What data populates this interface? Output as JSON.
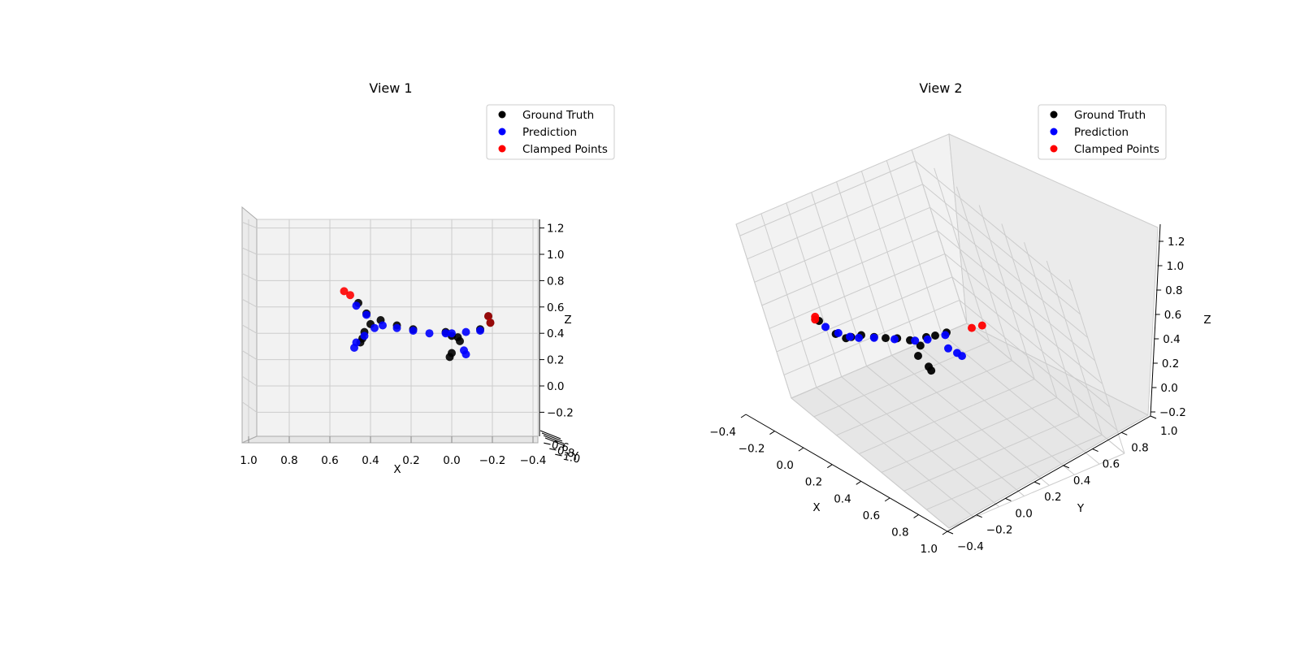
{
  "charts": [
    {
      "title": "View 1",
      "legend": [
        "Ground Truth",
        "Prediction",
        "Clamped Points"
      ],
      "x_label": "X",
      "y_label": "Y",
      "z_label": "Z",
      "x_ticks": [
        "1.0",
        "0.8",
        "0.6",
        "0.4",
        "0.2",
        "0.0",
        "−0.2",
        "−0.4"
      ],
      "z_ticks": [
        "1.2",
        "1.0",
        "0.8",
        "0.6",
        "0.4",
        "0.2",
        "0.0",
        "−0.2"
      ]
    },
    {
      "title": "View 2",
      "legend": [
        "Ground Truth",
        "Prediction",
        "Clamped Points"
      ],
      "x_label": "X",
      "y_label": "Y",
      "z_label": "Z",
      "x_ticks": [
        "−0.4",
        "−0.2",
        "0.0",
        "0.2",
        "0.4",
        "0.6",
        "0.8",
        "1.0"
      ],
      "y_ticks": [
        "−0.4",
        "−0.2",
        "0.0",
        "0.2",
        "0.4",
        "0.6",
        "0.8",
        "1.0"
      ],
      "z_ticks": [
        "1.2",
        "1.0",
        "0.8",
        "0.6",
        "0.4",
        "0.2",
        "0.0",
        "−0.2"
      ]
    }
  ],
  "colors": {
    "ground_truth": "#000000",
    "prediction": "#0000ff",
    "clamped": "#ff0000",
    "pane": "#f2f2f2",
    "grid": "#cccccc"
  },
  "chart_data": [
    {
      "type": "scatter",
      "subtype": "3d",
      "title": "View 1",
      "xlim": [
        -0.4,
        1.0
      ],
      "ylim": [
        -1.0,
        -0.6
      ],
      "zlim": [
        -0.2,
        1.3
      ],
      "xlabel": "X",
      "ylabel": "Y",
      "zlabel": "Z",
      "view": "front (looking along Y)",
      "grid": true,
      "legend_position": "top-right",
      "series": [
        {
          "name": "Ground Truth",
          "color": "#000000",
          "points": [
            [
              0.46,
              0.0,
              0.63
            ],
            [
              0.42,
              0.0,
              0.55
            ],
            [
              0.4,
              0.0,
              0.47
            ],
            [
              0.35,
              0.0,
              0.5
            ],
            [
              0.43,
              0.0,
              0.41
            ],
            [
              0.44,
              0.0,
              0.36
            ],
            [
              0.45,
              0.0,
              0.33
            ],
            [
              0.27,
              0.0,
              0.46
            ],
            [
              0.19,
              0.0,
              0.43
            ],
            [
              0.03,
              0.0,
              0.41
            ],
            [
              0.0,
              0.0,
              0.38
            ],
            [
              -0.04,
              0.0,
              0.34
            ],
            [
              -0.03,
              0.0,
              0.37
            ],
            [
              0.0,
              0.0,
              0.25
            ],
            [
              0.01,
              0.0,
              0.22
            ],
            [
              -0.18,
              0.0,
              0.53
            ],
            [
              -0.19,
              0.0,
              0.48
            ],
            [
              -0.14,
              0.0,
              0.43
            ]
          ]
        },
        {
          "name": "Prediction",
          "color": "#0000ff",
          "points": [
            [
              0.47,
              0.0,
              0.61
            ],
            [
              0.42,
              0.0,
              0.54
            ],
            [
              0.38,
              0.0,
              0.44
            ],
            [
              0.34,
              0.0,
              0.46
            ],
            [
              0.43,
              0.0,
              0.38
            ],
            [
              0.47,
              0.0,
              0.33
            ],
            [
              0.48,
              0.0,
              0.29
            ],
            [
              0.27,
              0.0,
              0.44
            ],
            [
              0.19,
              0.0,
              0.42
            ],
            [
              0.11,
              0.0,
              0.4
            ],
            [
              0.03,
              0.0,
              0.4
            ],
            [
              0.0,
              0.0,
              0.4
            ],
            [
              -0.07,
              0.0,
              0.41
            ],
            [
              -0.14,
              0.0,
              0.42
            ],
            [
              -0.06,
              0.0,
              0.27
            ],
            [
              -0.07,
              0.0,
              0.24
            ]
          ]
        },
        {
          "name": "Clamped Points",
          "color": "#ff0000",
          "points": [
            [
              0.53,
              0.0,
              0.72
            ],
            [
              0.5,
              0.0,
              0.69
            ],
            [
              -0.18,
              0.0,
              0.53
            ],
            [
              -0.19,
              0.0,
              0.48
            ]
          ]
        }
      ]
    },
    {
      "type": "scatter",
      "subtype": "3d",
      "title": "View 2",
      "xlim": [
        -0.4,
        1.0
      ],
      "ylim": [
        -0.4,
        1.0
      ],
      "zlim": [
        -0.2,
        1.3
      ],
      "xlabel": "X",
      "ylabel": "Y",
      "zlabel": "Z",
      "view": "isometric (elev 30, azim -60)",
      "grid": true,
      "legend_position": "top-right",
      "series": [
        {
          "name": "Ground Truth",
          "color": "#000000",
          "points": [
            [
              -0.35,
              -0.3,
              0.55
            ],
            [
              -0.24,
              -0.25,
              0.38
            ],
            [
              -0.18,
              -0.2,
              0.32
            ],
            [
              -0.14,
              -0.2,
              0.35
            ],
            [
              -0.1,
              -0.1,
              0.35
            ],
            [
              -0.02,
              -0.05,
              0.33
            ],
            [
              0.05,
              0.0,
              0.32
            ],
            [
              0.12,
              0.05,
              0.32
            ],
            [
              0.2,
              0.1,
              0.3
            ],
            [
              0.28,
              0.1,
              0.25
            ],
            [
              0.3,
              0.0,
              0.15
            ],
            [
              0.4,
              -0.05,
              0.05
            ],
            [
              0.42,
              -0.05,
              0.0
            ],
            [
              0.25,
              0.3,
              0.28
            ],
            [
              0.3,
              0.35,
              0.3
            ],
            [
              0.35,
              0.45,
              0.32
            ]
          ]
        },
        {
          "name": "Prediction",
          "color": "#0000ff",
          "points": [
            [
              -0.3,
              -0.3,
              0.48
            ],
            [
              -0.22,
              -0.25,
              0.4
            ],
            [
              -0.15,
              -0.2,
              0.35
            ],
            [
              -0.1,
              -0.15,
              0.33
            ],
            [
              -0.02,
              -0.05,
              0.32
            ],
            [
              0.1,
              0.05,
              0.3
            ],
            [
              0.22,
              0.15,
              0.28
            ],
            [
              0.26,
              0.3,
              0.25
            ],
            [
              0.34,
              0.45,
              0.28
            ],
            [
              0.4,
              0.35,
              0.15
            ],
            [
              0.45,
              0.4,
              0.08
            ],
            [
              0.48,
              0.42,
              0.04
            ]
          ]
        },
        {
          "name": "Clamped Points",
          "color": "#ff0000",
          "points": [
            [
              -0.38,
              -0.3,
              0.6
            ],
            [
              -0.38,
              -0.3,
              0.56
            ],
            [
              0.45,
              0.7,
              0.32
            ],
            [
              0.5,
              0.78,
              0.34
            ]
          ]
        }
      ]
    }
  ]
}
